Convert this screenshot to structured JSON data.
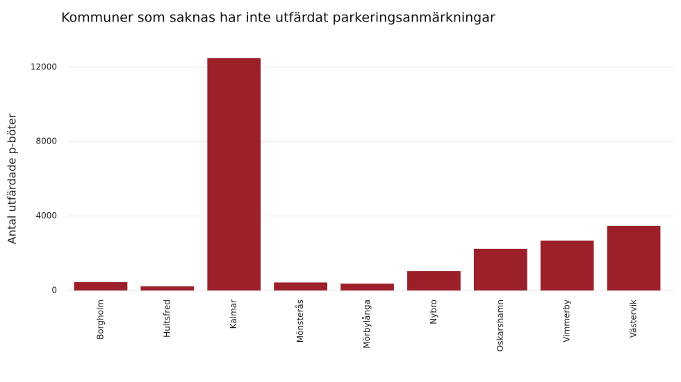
{
  "chart_data": {
    "type": "bar",
    "title": "Kommuner som saknas har inte utfärdat parkeringsanmärkningar",
    "y_label": "Antal utfärdade p-böter",
    "categories": [
      "Borgholm",
      "Hultsfred",
      "Kalmar",
      "Mönsterås",
      "Mörbylånga",
      "Nybro",
      "Oskarshamn",
      "Vimmerby",
      "Västervik"
    ],
    "values": [
      450,
      220,
      12480,
      430,
      370,
      1040,
      2240,
      2680,
      3470
    ],
    "color": "#9b2029",
    "ylim": [
      0,
      13000
    ],
    "yticks": [
      0,
      4000,
      8000,
      12000
    ],
    "grid": true
  }
}
